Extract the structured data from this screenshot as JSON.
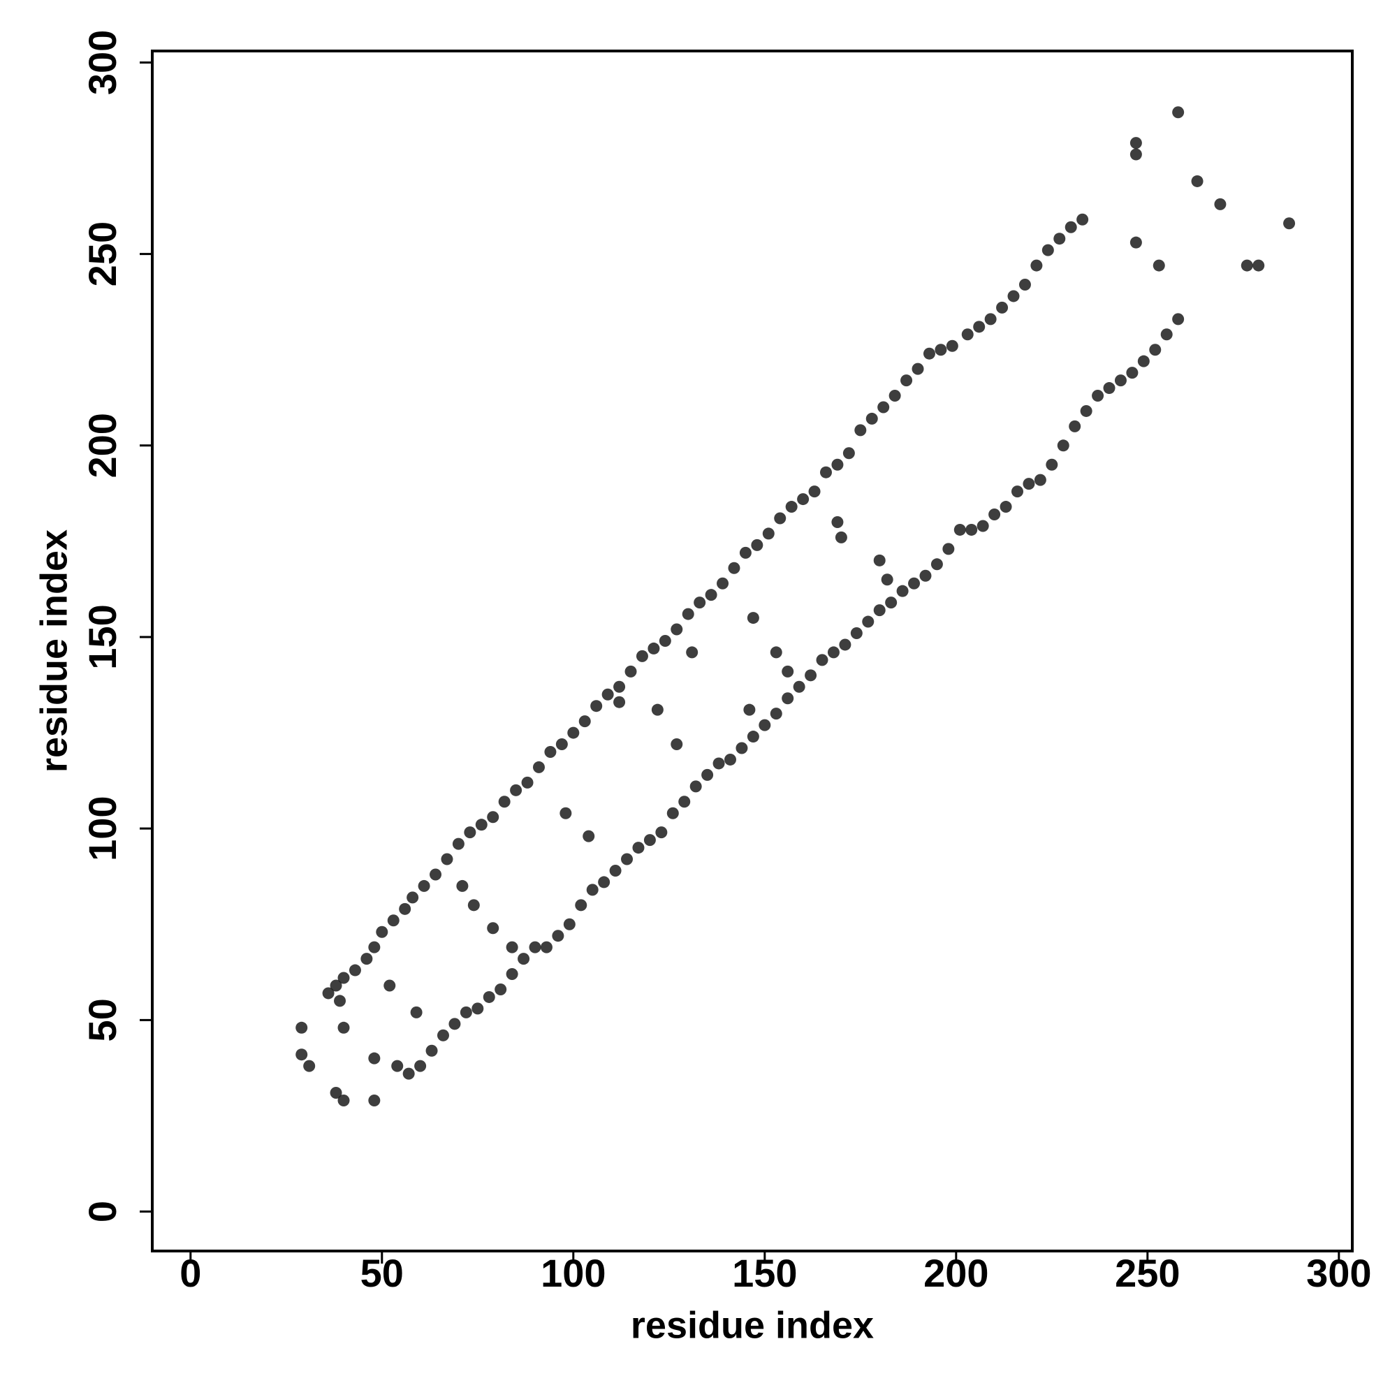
{
  "chart_data": {
    "type": "scatter",
    "xlabel": "residue index",
    "ylabel": "residue index",
    "color": "#1c1c1c",
    "xlim": [
      -10,
      303.5
    ],
    "ylim": [
      -10.3,
      303
    ],
    "xticks": [
      0,
      50,
      100,
      150,
      200,
      250,
      300
    ],
    "yticks": [
      0,
      50,
      100,
      150,
      200,
      250,
      300
    ],
    "x": [
      36,
      38,
      40,
      43,
      46,
      48,
      50,
      53,
      56,
      58,
      61,
      64,
      67,
      70,
      73,
      76,
      79,
      82,
      85,
      88,
      91,
      94,
      97,
      100,
      103,
      106,
      109,
      112,
      115,
      118,
      121,
      124,
      127,
      130,
      133,
      136,
      139,
      142,
      145,
      148,
      151,
      154,
      157,
      160,
      163,
      166,
      169,
      172,
      175,
      178,
      181,
      184,
      187,
      190,
      193,
      196,
      199,
      203,
      206,
      209,
      212,
      215,
      218,
      221,
      224,
      227,
      230,
      233,
      29,
      31,
      38,
      40,
      54,
      57,
      60,
      63,
      66,
      69,
      72,
      75,
      78,
      81,
      84,
      87,
      90,
      93,
      96,
      99,
      102,
      105,
      108,
      111,
      114,
      117,
      120,
      123,
      126,
      129,
      132,
      135,
      138,
      141,
      144,
      147,
      150,
      153,
      156,
      159,
      162,
      165,
      168,
      171,
      174,
      177,
      180,
      183,
      186,
      189,
      192,
      195,
      198,
      201,
      204,
      207,
      210,
      213,
      216,
      219,
      222,
      225,
      228,
      231,
      234,
      237,
      240,
      243,
      246,
      249,
      252,
      255,
      258,
      29,
      40,
      39,
      48,
      48,
      52,
      59,
      71,
      74,
      79,
      84,
      98,
      104,
      112,
      122,
      127,
      131,
      146,
      147,
      153,
      156,
      169,
      170,
      180,
      182,
      247,
      247,
      247,
      253,
      258,
      263,
      269,
      276,
      279,
      287
    ],
    "y": [
      57,
      59,
      61,
      63,
      66,
      69,
      73,
      76,
      79,
      82,
      85,
      88,
      92,
      96,
      99,
      101,
      103,
      107,
      110,
      112,
      116,
      120,
      122,
      125,
      128,
      132,
      135,
      137,
      141,
      145,
      147,
      149,
      152,
      156,
      159,
      161,
      164,
      168,
      172,
      174,
      177,
      181,
      184,
      186,
      188,
      193,
      195,
      198,
      204,
      207,
      210,
      213,
      217,
      220,
      224,
      225,
      226,
      229,
      231,
      233,
      236,
      239,
      242,
      247,
      251,
      254,
      257,
      259,
      41,
      38,
      31,
      29,
      38,
      36,
      38,
      42,
      46,
      49,
      52,
      53,
      56,
      58,
      62,
      66,
      69,
      69,
      72,
      75,
      80,
      84,
      86,
      89,
      92,
      95,
      97,
      99,
      104,
      107,
      111,
      114,
      117,
      118,
      121,
      124,
      127,
      130,
      134,
      137,
      140,
      144,
      146,
      148,
      151,
      154,
      157,
      159,
      162,
      164,
      166,
      169,
      173,
      178,
      178,
      179,
      182,
      184,
      188,
      190,
      191,
      195,
      200,
      205,
      209,
      213,
      215,
      217,
      219,
      222,
      225,
      229,
      233,
      48,
      48,
      55,
      29,
      40,
      59,
      52,
      85,
      80,
      74,
      69,
      104,
      98,
      133,
      131,
      122,
      146,
      131,
      155,
      146,
      141,
      180,
      176,
      170,
      165,
      276,
      279,
      253,
      247,
      287,
      269,
      263,
      247,
      247,
      258
    ]
  }
}
